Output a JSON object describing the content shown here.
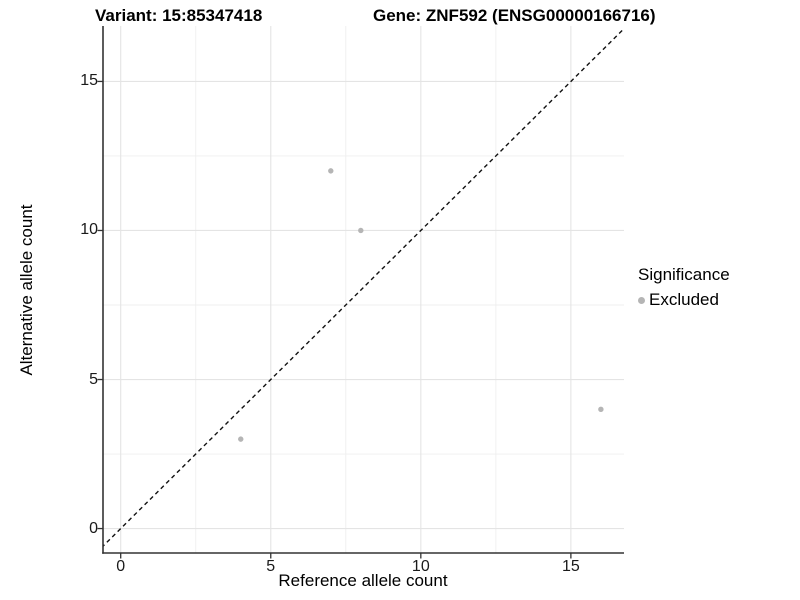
{
  "title": {
    "variant": "Variant: 15:85347418",
    "gene": "Gene: ZNF592 (ENSG00000166716)"
  },
  "axes": {
    "x_label": "Reference allele count",
    "y_label": "Alternative allele count"
  },
  "legend": {
    "title": "Significance",
    "items": [
      {
        "label": "Excluded",
        "color": "#b5b5b5"
      }
    ]
  },
  "chart_data": {
    "type": "scatter",
    "title": "Variant: 15:85347418  Gene: ZNF592 (ENSG00000166716)",
    "xlabel": "Reference allele count",
    "ylabel": "Alternative allele count",
    "series": [
      {
        "name": "Excluded",
        "color": "#b5b5b5",
        "points": [
          {
            "x": 4,
            "y": 3
          },
          {
            "x": 7,
            "y": 12
          },
          {
            "x": 8,
            "y": 10
          },
          {
            "x": 16,
            "y": 4
          }
        ]
      }
    ],
    "x_ticks": [
      0,
      5,
      10,
      15
    ],
    "y_ticks": [
      0,
      5,
      10,
      15
    ],
    "x_minor_ticks": [
      2.5,
      7.5,
      12.5
    ],
    "y_minor_ticks": [
      2.5,
      7.5,
      12.5
    ],
    "x_domain": [
      -0.59,
      16.77
    ],
    "y_domain": [
      -0.82,
      16.86
    ],
    "reference_line": {
      "kind": "identity",
      "style": "dashed",
      "color": "#111111"
    },
    "grid": true,
    "legend_position": "right",
    "colors": {
      "major_grid": "#e4e4e4",
      "minor_grid": "#efefef",
      "axis_line": "#333333",
      "point": "#b5b5b5"
    }
  }
}
